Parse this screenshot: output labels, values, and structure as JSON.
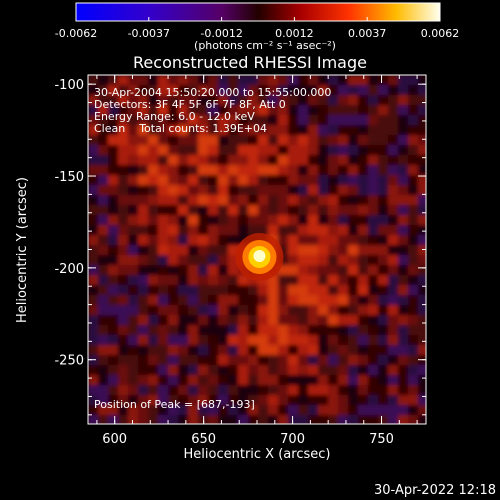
{
  "colorbar": {
    "ticks": [
      "-0.0062",
      "-0.0037",
      "-0.0012",
      "0.0012",
      "0.0037",
      "0.0062"
    ],
    "units": "(photons cm⁻² s⁻¹ asec⁻²)",
    "range": [
      -0.0062,
      0.0062
    ],
    "colormap": "blue-purple-red-yellow-white"
  },
  "plot": {
    "title": "Reconstructed RHESSI Image",
    "xlabel": "Heliocentric X (arcsec)",
    "ylabel": "Heliocentric Y (arcsec)",
    "xticks": [
      "600",
      "650",
      "700",
      "750"
    ],
    "yticks": [
      "-100",
      "-150",
      "-200",
      "-250"
    ],
    "xlim": [
      585,
      775
    ],
    "ylim": [
      -285,
      -95
    ],
    "info_lines": [
      "30-Apr-2004 15:50:20.000 to 15:55:00.000",
      "Detectors: 3F 4F 5F 6F 7F 8F, Att 0",
      "Energy Range: 6.0 - 12.0 keV",
      "Clean    Total counts: 1.39E+04"
    ],
    "peak_label": "Position of Peak = [687,-193]",
    "peak": [
      687,
      -193
    ]
  },
  "footer": {
    "timestamp": "30-Apr-2022 12:18"
  }
}
